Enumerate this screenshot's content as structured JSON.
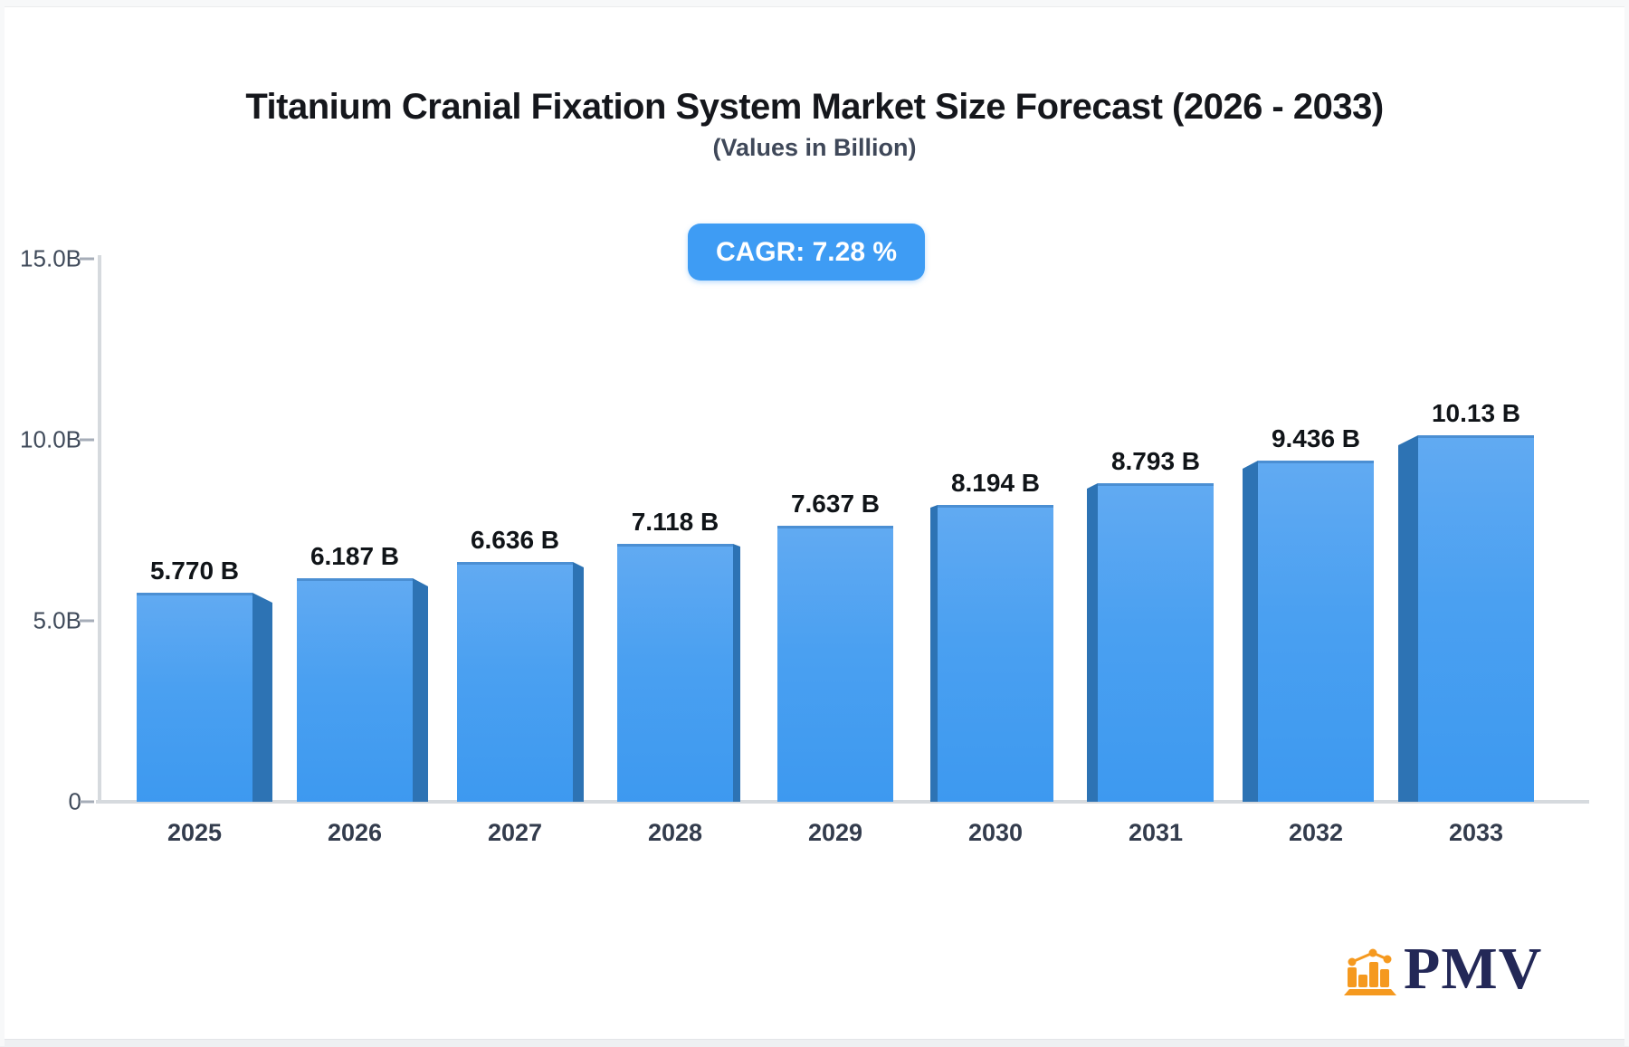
{
  "page": {
    "title": "Titanium Cranial Fixation System Market Size Forecast (2026 - 2033)",
    "subtitle": "(Values in Billion)",
    "cagr_badge": "CAGR: 7.28 %"
  },
  "chart_data": {
    "type": "bar",
    "title": "Titanium Cranial Fixation System Market Size Forecast (2026 - 2033)",
    "subtitle": "(Values in Billion)",
    "cagr": "7.28 %",
    "categories": [
      "2025",
      "2026",
      "2027",
      "2028",
      "2029",
      "2030",
      "2031",
      "2032",
      "2033"
    ],
    "values": [
      5.77,
      6.187,
      6.636,
      7.118,
      7.637,
      8.194,
      8.793,
      9.436,
      10.13
    ],
    "value_labels": [
      "5.770 B",
      "6.187 B",
      "6.636 B",
      "7.118 B",
      "7.637 B",
      "8.194 B",
      "8.793 B",
      "9.436 B",
      "10.13 B"
    ],
    "xlabel": "",
    "ylabel": "",
    "ylim": [
      0,
      15
    ],
    "y_ticks": [
      {
        "label": "15.0B",
        "value": 15
      },
      {
        "label": "10.0B",
        "value": 10
      },
      {
        "label": "5.0B",
        "value": 5
      },
      {
        "label": "0",
        "value": 0
      }
    ],
    "grid": false,
    "legend": "none",
    "style": "3d-column, central perspective (side bevels face outward from center)",
    "colors": {
      "bar_face_top": "#61aaf2",
      "bar_face_bottom": "#3d99f0",
      "bar_top_edge": "#4b8fd3",
      "bar_side_panel": "#2d73b4",
      "badge_background": "#3e9cf4",
      "badge_text": "#ffffff",
      "axis_line": "#d6dade",
      "tick_text": "#3f4a5a",
      "value_text": "#101418",
      "category_text": "#333c4d"
    }
  },
  "logo": {
    "text": "PMV",
    "icon": "bar-chart-logo-icon",
    "orange": "#f5991f",
    "navy": "#232857"
  }
}
